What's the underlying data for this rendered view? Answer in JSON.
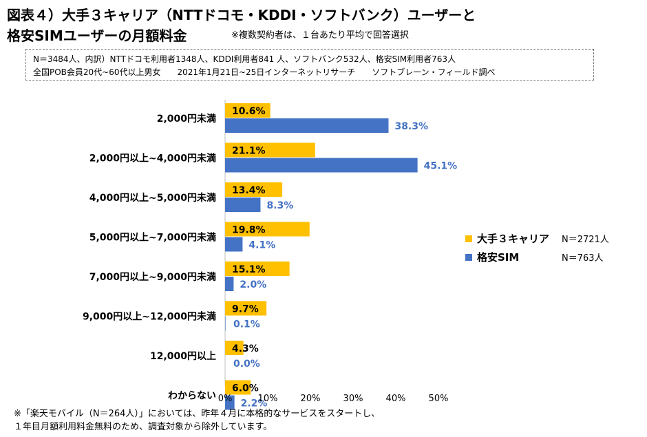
{
  "header": {
    "title_line1": "図表４）大手３キャリア（NTTドコモ・KDDI・ソフトバンク）ユーザーと",
    "title_line2": "格安SIMユーザーの月額料金",
    "note": "※複数契約者は、１台あたり平均で回答選択"
  },
  "info": {
    "line1": "N＝3484人、内訳）NTTドコモ利用者1348人、KDDI利用者841 人、ソフトバンク532人、格安SIM利用者763人",
    "line2": "全国POB会員20代~60代以上男女　　2021年1月21日~25日インターネットリサーチ　　ソフトブレーン・フィールド調べ"
  },
  "chart_data": {
    "type": "bar",
    "orientation": "horizontal",
    "title": "大手３キャリア（NTTドコモ・KDDI・ソフトバンク）ユーザーと格安SIMユーザーの月額料金",
    "categories": [
      "2,000円未満",
      "2,000円以上~4,000円未満",
      "4,000円以上~5,000円未満",
      "5,000円以上~7,000円未満",
      "7,000円以上~9,000円未満",
      "9,000円以上~12,000円未満",
      "12,000円以上",
      "わからない"
    ],
    "series": [
      {
        "name": "大手３キャリア",
        "n_label": "N＝2721人",
        "color": "#FFC000",
        "values": [
          10.6,
          21.1,
          13.4,
          19.8,
          15.1,
          9.7,
          4.3,
          6.0
        ],
        "labels": [
          "10.6%",
          "21.1%",
          "13.4%",
          "19.8%",
          "15.1%",
          "9.7%",
          "4.3%",
          "6.0%"
        ]
      },
      {
        "name": "格安SIM",
        "n_label": "N＝763人",
        "color": "#4472C4",
        "values": [
          38.3,
          45.1,
          8.3,
          4.1,
          2.0,
          0.1,
          0.0,
          2.2
        ],
        "labels": [
          "38.3%",
          "45.1%",
          "8.3%",
          "4.1%",
          "2.0%",
          "0.1%",
          "0.0%",
          "2.2%"
        ]
      }
    ],
    "xlim": [
      0,
      50
    ],
    "xticks": [
      "0%",
      "10%",
      "20%",
      "30%",
      "40%",
      "50%"
    ],
    "legend_position": "right"
  },
  "footnote": {
    "line1": "※「楽天モバイル（N＝264人）」においては、昨年４月に本格的なサービスをスタートし、",
    "line2": "１年目月額利用料金無料のため、調査対象から除外しています。"
  }
}
